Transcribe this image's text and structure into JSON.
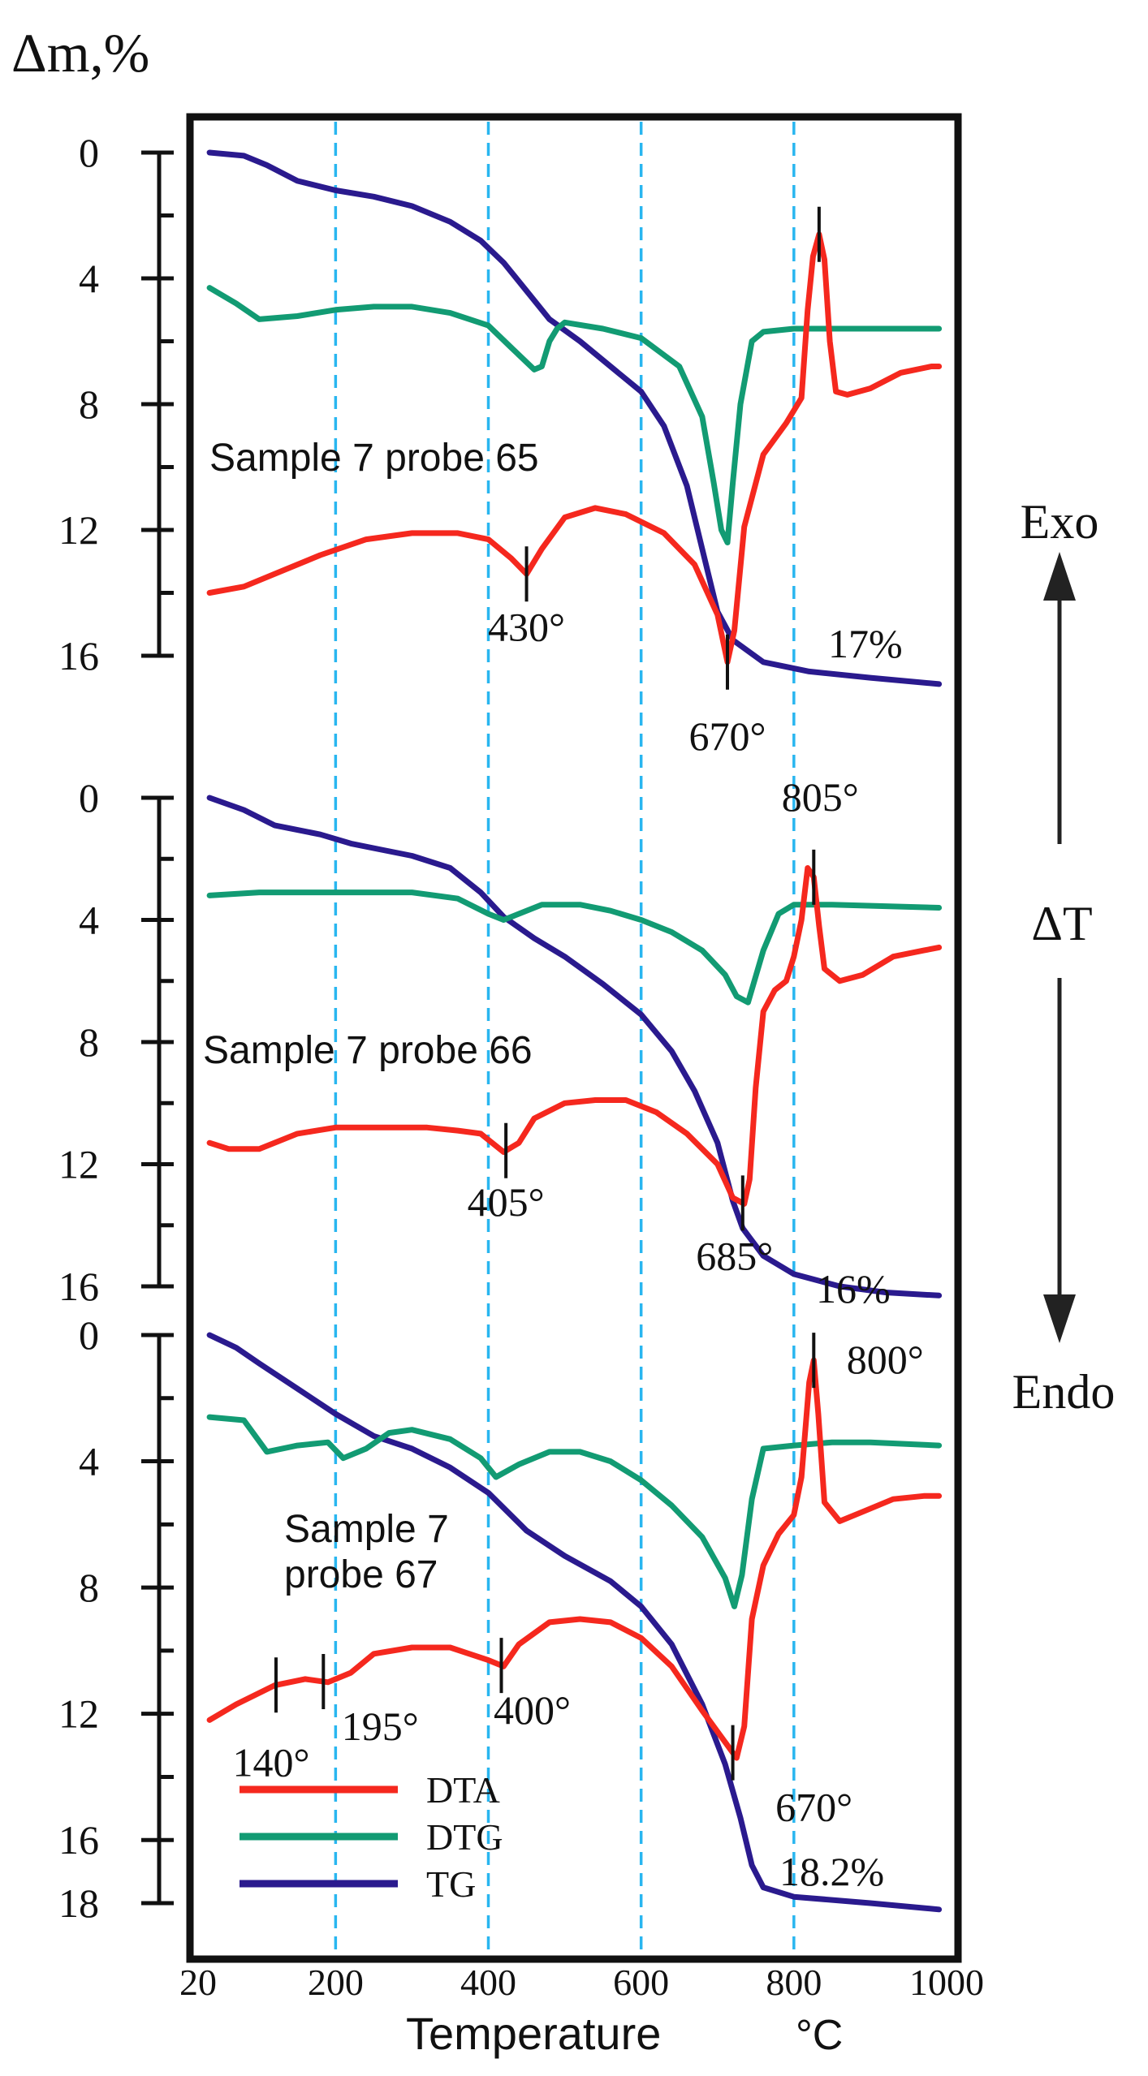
{
  "colors": {
    "dta": "#f5281e",
    "dtg": "#129b73",
    "tg": "#2a1a8e",
    "grid": "#29b6f0",
    "axis": "#111111",
    "frame": "#111111",
    "background": "#ffffff"
  },
  "chart_data": {
    "type": "line",
    "title": "",
    "ylabel": "Δm,%",
    "xlabel": "Temperature",
    "xunit": "°C",
    "xlim": [
      20,
      1000
    ],
    "x_ticks": [
      {
        "v": 20,
        "label": "20"
      },
      {
        "v": 200,
        "label": "200"
      },
      {
        "v": 400,
        "label": "400"
      },
      {
        "v": 600,
        "label": "600"
      },
      {
        "v": 800,
        "label": "800"
      },
      {
        "v": 1000,
        "label": "1000"
      }
    ],
    "grid_x": [
      200,
      400,
      600,
      800
    ],
    "right_axis": {
      "label": "ΔT",
      "top": "Exo",
      "bottom": "Endo"
    },
    "legend": {
      "position": "bottom-left",
      "entries": [
        {
          "key": "dta",
          "label": "DTA"
        },
        {
          "key": "dtg",
          "label": "DTG"
        },
        {
          "key": "tg",
          "label": "TG"
        }
      ]
    },
    "panels": [
      {
        "name": "Sample 7 probe 65",
        "label_lines": [
          "Sample 7 probe 65"
        ],
        "ylim": [
          0,
          16
        ],
        "y_ticks": [
          0,
          4,
          8,
          12,
          16
        ],
        "mass_loss_label": "17%",
        "series": {
          "tg": [
            [
              35,
              0
            ],
            [
              80,
              0.1
            ],
            [
              110,
              0.4
            ],
            [
              150,
              0.9
            ],
            [
              200,
              1.2
            ],
            [
              250,
              1.4
            ],
            [
              300,
              1.7
            ],
            [
              350,
              2.2
            ],
            [
              390,
              2.8
            ],
            [
              420,
              3.5
            ],
            [
              450,
              4.4
            ],
            [
              480,
              5.3
            ],
            [
              520,
              6.0
            ],
            [
              560,
              6.8
            ],
            [
              600,
              7.6
            ],
            [
              630,
              8.7
            ],
            [
              660,
              10.6
            ],
            [
              680,
              12.6
            ],
            [
              700,
              14.6
            ],
            [
              720,
              15.5
            ],
            [
              760,
              16.2
            ],
            [
              820,
              16.5
            ],
            [
              900,
              16.7
            ],
            [
              990,
              16.9
            ]
          ],
          "dtg": [
            [
              35,
              4.3
            ],
            [
              70,
              4.8
            ],
            [
              100,
              5.3
            ],
            [
              150,
              5.2
            ],
            [
              200,
              5.0
            ],
            [
              250,
              4.9
            ],
            [
              300,
              4.9
            ],
            [
              350,
              5.1
            ],
            [
              400,
              5.5
            ],
            [
              430,
              6.2
            ],
            [
              460,
              6.9
            ],
            [
              470,
              6.8
            ],
            [
              480,
              6.0
            ],
            [
              490,
              5.6
            ],
            [
              500,
              5.4
            ],
            [
              550,
              5.6
            ],
            [
              600,
              5.9
            ],
            [
              650,
              6.8
            ],
            [
              680,
              8.4
            ],
            [
              695,
              10.5
            ],
            [
              705,
              12.0
            ],
            [
              713,
              12.4
            ],
            [
              720,
              10.5
            ],
            [
              730,
              8.0
            ],
            [
              745,
              6.0
            ],
            [
              760,
              5.7
            ],
            [
              800,
              5.6
            ],
            [
              900,
              5.6
            ],
            [
              990,
              5.6
            ]
          ]
        },
        "dta": [
          [
            35,
            14.0
          ],
          [
            80,
            13.8
          ],
          [
            130,
            13.3
          ],
          [
            180,
            12.8
          ],
          [
            240,
            12.3
          ],
          [
            300,
            12.1
          ],
          [
            360,
            12.1
          ],
          [
            400,
            12.3
          ],
          [
            430,
            12.9
          ],
          [
            450,
            13.4
          ],
          [
            470,
            12.6
          ],
          [
            500,
            11.6
          ],
          [
            540,
            11.3
          ],
          [
            580,
            11.5
          ],
          [
            630,
            12.1
          ],
          [
            670,
            13.1
          ],
          [
            700,
            14.7
          ],
          [
            713,
            16.2
          ],
          [
            722,
            15.2
          ],
          [
            735,
            11.9
          ],
          [
            760,
            9.6
          ],
          [
            790,
            8.6
          ],
          [
            810,
            7.8
          ],
          [
            818,
            5.0
          ],
          [
            825,
            3.3
          ],
          [
            833,
            2.6
          ],
          [
            840,
            3.4
          ],
          [
            847,
            6.0
          ],
          [
            855,
            7.6
          ],
          [
            870,
            7.7
          ],
          [
            900,
            7.5
          ],
          [
            940,
            7.0
          ],
          [
            980,
            6.8
          ],
          [
            990,
            6.8
          ]
        ],
        "markers": [
          {
            "x": 450,
            "label": "430°"
          },
          {
            "x": 713,
            "label": "670°"
          },
          {
            "x": 833,
            "label": ""
          }
        ]
      },
      {
        "name": "Sample 7 probe 66",
        "label_lines": [
          "Sample 7 probe 66"
        ],
        "ylim": [
          0,
          16
        ],
        "y_ticks": [
          0,
          4,
          8,
          12,
          16
        ],
        "mass_loss_label": "16%",
        "series": {
          "tg": [
            [
              35,
              0
            ],
            [
              80,
              0.4
            ],
            [
              120,
              0.9
            ],
            [
              180,
              1.2
            ],
            [
              220,
              1.5
            ],
            [
              260,
              1.7
            ],
            [
              300,
              1.9
            ],
            [
              350,
              2.3
            ],
            [
              390,
              3.1
            ],
            [
              420,
              3.9
            ],
            [
              460,
              4.6
            ],
            [
              500,
              5.2
            ],
            [
              550,
              6.1
            ],
            [
              600,
              7.1
            ],
            [
              640,
              8.3
            ],
            [
              670,
              9.6
            ],
            [
              700,
              11.3
            ],
            [
              720,
              13.2
            ],
            [
              733,
              14.1
            ],
            [
              760,
              15.0
            ],
            [
              800,
              15.6
            ],
            [
              860,
              16.0
            ],
            [
              920,
              16.2
            ],
            [
              990,
              16.3
            ]
          ],
          "dtg": [
            [
              35,
              3.2
            ],
            [
              100,
              3.1
            ],
            [
              200,
              3.1
            ],
            [
              300,
              3.1
            ],
            [
              360,
              3.3
            ],
            [
              400,
              3.8
            ],
            [
              420,
              4.0
            ],
            [
              440,
              3.8
            ],
            [
              470,
              3.5
            ],
            [
              520,
              3.5
            ],
            [
              560,
              3.7
            ],
            [
              600,
              4.0
            ],
            [
              640,
              4.4
            ],
            [
              680,
              5.0
            ],
            [
              710,
              5.8
            ],
            [
              725,
              6.5
            ],
            [
              740,
              6.7
            ],
            [
              760,
              5.0
            ],
            [
              780,
              3.8
            ],
            [
              800,
              3.5
            ],
            [
              850,
              3.5
            ],
            [
              990,
              3.6
            ]
          ],
          "dta": [
            [
              35,
              11.3
            ],
            [
              60,
              11.5
            ],
            [
              100,
              11.5
            ],
            [
              150,
              11.0
            ],
            [
              200,
              10.8
            ],
            [
              260,
              10.8
            ],
            [
              320,
              10.8
            ],
            [
              360,
              10.9
            ],
            [
              390,
              11.0
            ],
            [
              420,
              11.6
            ],
            [
              440,
              11.3
            ],
            [
              460,
              10.5
            ],
            [
              500,
              10.0
            ],
            [
              540,
              9.9
            ],
            [
              580,
              9.9
            ],
            [
              620,
              10.3
            ],
            [
              660,
              11.0
            ],
            [
              700,
              12.0
            ],
            [
              720,
              13.1
            ],
            [
              735,
              13.3
            ],
            [
              742,
              12.5
            ],
            [
              750,
              9.5
            ],
            [
              760,
              7.0
            ],
            [
              775,
              6.3
            ],
            [
              790,
              6.0
            ],
            [
              800,
              5.2
            ],
            [
              810,
              4.0
            ],
            [
              818,
              2.3
            ],
            [
              826,
              2.6
            ],
            [
              833,
              4.2
            ],
            [
              840,
              5.6
            ],
            [
              860,
              6.0
            ],
            [
              890,
              5.8
            ],
            [
              930,
              5.2
            ],
            [
              970,
              5.0
            ],
            [
              990,
              4.9
            ]
          ]
        },
        "markers": [
          {
            "x": 423,
            "label": "405°"
          },
          {
            "x": 733,
            "label": "685°"
          },
          {
            "x": 826,
            "label": "805°"
          }
        ]
      },
      {
        "name": "Sample 7 probe 67",
        "label_lines": [
          "Sample 7",
          "probe 67"
        ],
        "ylim": [
          0,
          18
        ],
        "y_ticks": [
          0,
          4,
          8,
          12,
          16,
          18
        ],
        "mass_loss_label": "18.2%",
        "series": {
          "tg": [
            [
              35,
              0
            ],
            [
              70,
              0.4
            ],
            [
              100,
              0.9
            ],
            [
              150,
              1.7
            ],
            [
              200,
              2.5
            ],
            [
              250,
              3.2
            ],
            [
              300,
              3.6
            ],
            [
              350,
              4.2
            ],
            [
              400,
              5.0
            ],
            [
              450,
              6.2
            ],
            [
              500,
              7.0
            ],
            [
              560,
              7.8
            ],
            [
              600,
              8.6
            ],
            [
              640,
              9.8
            ],
            [
              680,
              11.7
            ],
            [
              710,
              13.6
            ],
            [
              730,
              15.3
            ],
            [
              745,
              16.8
            ],
            [
              760,
              17.5
            ],
            [
              800,
              17.8
            ],
            [
              900,
              18.0
            ],
            [
              990,
              18.2
            ]
          ],
          "dtg": [
            [
              35,
              2.6
            ],
            [
              80,
              2.7
            ],
            [
              110,
              3.7
            ],
            [
              150,
              3.5
            ],
            [
              190,
              3.4
            ],
            [
              210,
              3.9
            ],
            [
              240,
              3.6
            ],
            [
              270,
              3.1
            ],
            [
              300,
              3.0
            ],
            [
              350,
              3.3
            ],
            [
              390,
              3.9
            ],
            [
              410,
              4.5
            ],
            [
              440,
              4.1
            ],
            [
              480,
              3.7
            ],
            [
              520,
              3.7
            ],
            [
              560,
              4.0
            ],
            [
              600,
              4.6
            ],
            [
              640,
              5.4
            ],
            [
              680,
              6.4
            ],
            [
              710,
              7.7
            ],
            [
              722,
              8.6
            ],
            [
              732,
              7.6
            ],
            [
              745,
              5.2
            ],
            [
              760,
              3.6
            ],
            [
              800,
              3.5
            ],
            [
              850,
              3.4
            ],
            [
              900,
              3.4
            ],
            [
              990,
              3.5
            ]
          ],
          "dta": [
            [
              35,
              12.2
            ],
            [
              70,
              11.7
            ],
            [
              120,
              11.1
            ],
            [
              160,
              10.9
            ],
            [
              190,
              11.0
            ],
            [
              220,
              10.7
            ],
            [
              250,
              10.1
            ],
            [
              300,
              9.9
            ],
            [
              350,
              9.9
            ],
            [
              400,
              10.3
            ],
            [
              420,
              10.5
            ],
            [
              440,
              9.8
            ],
            [
              480,
              9.1
            ],
            [
              520,
              9.0
            ],
            [
              560,
              9.1
            ],
            [
              600,
              9.6
            ],
            [
              640,
              10.5
            ],
            [
              680,
              11.9
            ],
            [
              710,
              12.9
            ],
            [
              725,
              13.4
            ],
            [
              735,
              12.4
            ],
            [
              745,
              9.0
            ],
            [
              760,
              7.3
            ],
            [
              780,
              6.3
            ],
            [
              800,
              5.7
            ],
            [
              810,
              4.5
            ],
            [
              820,
              1.5
            ],
            [
              826,
              0.8
            ],
            [
              832,
              2.5
            ],
            [
              840,
              5.3
            ],
            [
              860,
              5.9
            ],
            [
              890,
              5.6
            ],
            [
              930,
              5.2
            ],
            [
              970,
              5.1
            ],
            [
              990,
              5.1
            ]
          ]
        },
        "markers": [
          {
            "x": 122,
            "label": "140°"
          },
          {
            "x": 184,
            "label": "195°"
          },
          {
            "x": 417,
            "label": "400°"
          },
          {
            "x": 720,
            "label": "670°"
          },
          {
            "x": 826,
            "label": "800°"
          }
        ]
      }
    ]
  }
}
